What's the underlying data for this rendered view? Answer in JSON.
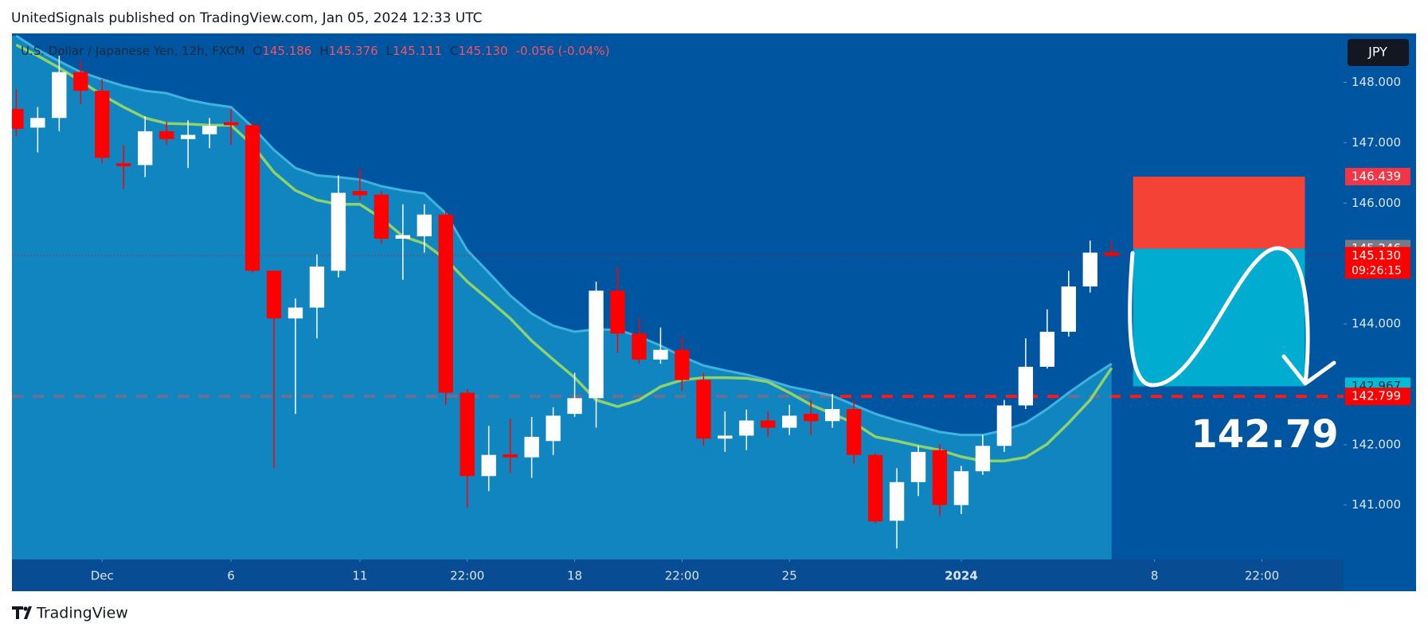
{
  "header": {
    "title": "UnitedSignals published on TradingView.com, Jan 05, 2024 12:33 UTC"
  },
  "footer": {
    "brand": "TradingView"
  },
  "chart_data": {
    "type": "candlestick",
    "symbol": "U.S. Dollar / Japanese Yen, 12h, FXCM",
    "ohlc_legend": [
      {
        "key": "O",
        "value": "145.186"
      },
      {
        "key": "H",
        "value": "145.376"
      },
      {
        "key": "L",
        "value": "145.111"
      },
      {
        "key": "C",
        "value": "145.130"
      }
    ],
    "change": "-0.056 (-0.04%)",
    "currency": "JPY",
    "up_color": "#ffffff",
    "down_color": "#ff0000",
    "open": [
      147.56,
      147.25,
      147.41,
      148.17,
      147.86,
      146.66,
      146.63,
      147.19,
      147.06,
      147.14,
      147.34,
      147.29,
      144.88,
      144.09,
      144.27,
      144.88,
      146.2,
      146.14,
      145.41,
      145.45,
      145.81,
      142.86,
      141.48,
      141.84,
      141.79,
      142.06,
      142.51,
      142.77,
      144.55,
      143.84,
      143.41,
      143.57,
      143.07,
      142.1,
      142.15,
      142.4,
      142.28,
      142.51,
      142.39,
      142.59,
      141.83,
      140.74,
      141.38,
      141.91,
      141.0,
      141.56,
      141.98,
      142.65,
      143.29,
      143.87,
      144.62,
      145.186
    ],
    "high": [
      147.89,
      147.59,
      148.44,
      148.35,
      148.05,
      146.96,
      147.44,
      147.34,
      147.37,
      147.41,
      147.56,
      147.34,
      144.88,
      144.42,
      145.15,
      146.46,
      146.58,
      146.2,
      145.98,
      145.98,
      145.87,
      142.92,
      142.31,
      142.43,
      142.46,
      142.62,
      143.19,
      144.7,
      144.95,
      144.09,
      143.94,
      143.79,
      143.19,
      142.55,
      142.58,
      142.55,
      142.66,
      142.74,
      142.84,
      142.74,
      141.86,
      141.61,
      141.98,
      142.01,
      141.65,
      142.16,
      142.74,
      143.76,
      144.24,
      144.88,
      145.38,
      145.376
    ],
    "low": [
      147.11,
      146.84,
      147.19,
      147.64,
      146.66,
      146.24,
      146.43,
      146.96,
      146.58,
      146.91,
      146.96,
      144.85,
      141.61,
      142.51,
      143.76,
      144.77,
      146.05,
      145.33,
      144.73,
      145.18,
      142.66,
      140.96,
      141.23,
      141.53,
      141.45,
      141.83,
      142.46,
      142.28,
      143.52,
      143.34,
      143.34,
      142.89,
      141.98,
      141.88,
      141.91,
      142.13,
      142.16,
      142.16,
      142.28,
      141.68,
      140.7,
      140.28,
      141.15,
      140.82,
      140.85,
      141.5,
      141.88,
      142.59,
      143.26,
      143.79,
      144.52,
      145.111
    ],
    "close": [
      147.23,
      147.41,
      148.17,
      147.86,
      146.75,
      146.61,
      147.19,
      147.06,
      147.13,
      147.28,
      147.29,
      144.88,
      144.09,
      144.27,
      144.95,
      146.17,
      146.13,
      145.41,
      145.47,
      145.81,
      142.86,
      141.48,
      141.83,
      141.79,
      142.13,
      142.48,
      142.77,
      144.55,
      143.84,
      143.41,
      143.57,
      143.07,
      142.1,
      142.15,
      142.4,
      142.28,
      142.48,
      142.39,
      142.59,
      141.83,
      140.73,
      141.38,
      141.88,
      141.0,
      141.56,
      141.98,
      142.65,
      143.29,
      143.87,
      144.62,
      145.18,
      145.13
    ],
    "overlays": [
      {
        "color": "#3db4e0",
        "fill": "#1aa0d0",
        "values": [
          148.77,
          148.54,
          148.35,
          148.17,
          148.05,
          147.94,
          147.86,
          147.82,
          147.71,
          147.64,
          147.59,
          147.26,
          146.88,
          146.58,
          146.46,
          146.43,
          146.39,
          146.28,
          146.21,
          146.16,
          145.83,
          145.22,
          144.85,
          144.47,
          144.17,
          143.97,
          143.87,
          143.91,
          143.9,
          143.79,
          143.64,
          143.46,
          143.31,
          143.23,
          143.16,
          143.07,
          142.96,
          142.89,
          142.81,
          142.66,
          142.51,
          142.4,
          142.31,
          142.21,
          142.16,
          142.16,
          142.24,
          142.36,
          142.59,
          142.86,
          143.11,
          143.34
        ]
      },
      {
        "color": "#8fd16b",
        "values": [
          148.62,
          148.44,
          148.24,
          148.02,
          147.79,
          147.59,
          147.41,
          147.32,
          147.31,
          147.29,
          147.29,
          146.96,
          146.51,
          146.21,
          146.05,
          145.98,
          145.98,
          145.75,
          145.45,
          145.33,
          145.07,
          144.7,
          144.4,
          144.09,
          143.72,
          143.41,
          143.11,
          142.74,
          142.63,
          142.74,
          142.96,
          143.07,
          143.11,
          143.11,
          143.1,
          143.04,
          142.86,
          142.66,
          142.51,
          142.36,
          142.13,
          142.06,
          141.98,
          141.91,
          141.8,
          141.73,
          141.73,
          141.79,
          142.01,
          142.36,
          142.74,
          143.27
        ]
      }
    ],
    "xlim": [
      -0.2,
      61.8
    ],
    "xticks": [
      {
        "value": 4,
        "label": "Dec"
      },
      {
        "value": 10,
        "label": "6"
      },
      {
        "value": 16,
        "label": "11"
      },
      {
        "value": 21,
        "label": "22:00"
      },
      {
        "value": 26,
        "label": "18"
      },
      {
        "value": 31,
        "label": "22:00"
      },
      {
        "value": 36,
        "label": "25"
      },
      {
        "value": 44,
        "label": "2024"
      },
      {
        "value": 53,
        "label": "8"
      },
      {
        "value": 58,
        "label": "22:00"
      }
    ],
    "ylim": [
      140.1,
      148.81
    ],
    "yticks": [
      {
        "value": 141,
        "label": "141.000"
      },
      {
        "value": 142,
        "label": "142.000"
      },
      {
        "value": 144,
        "label": "144.000"
      },
      {
        "value": 146,
        "label": "146.000"
      },
      {
        "value": 147,
        "label": "147.000"
      },
      {
        "value": 148,
        "label": "148.000"
      }
    ],
    "hline": {
      "value": 142.799,
      "color": "#ff1a1a"
    },
    "position": {
      "start": 52,
      "end": 60,
      "entry": 145.246,
      "stop": 146.439,
      "target": 142.967,
      "stop_color": "#f44336",
      "target_color": "#00acd0"
    },
    "price_labels": [
      {
        "value": 146.439,
        "label": "146.439",
        "color": "#f23645",
        "text_color": "#ffffff"
      },
      {
        "value": 145.246,
        "label": "145.246",
        "color": "#787b86",
        "text_color": "#ffffff"
      },
      {
        "value": 145.13,
        "label": "145.130",
        "color": "#ff0000",
        "text_color": "#ffffff",
        "countdown": "09:26:15"
      },
      {
        "value": 142.967,
        "label": "142.967",
        "color": "#00bcd4",
        "text_color": "#0a2a40"
      },
      {
        "value": 142.799,
        "label": "142.799",
        "color": "#ff0000",
        "text_color": "#ffffff"
      }
    ],
    "annotation": {
      "text": "142.79",
      "value": 142.79
    }
  }
}
